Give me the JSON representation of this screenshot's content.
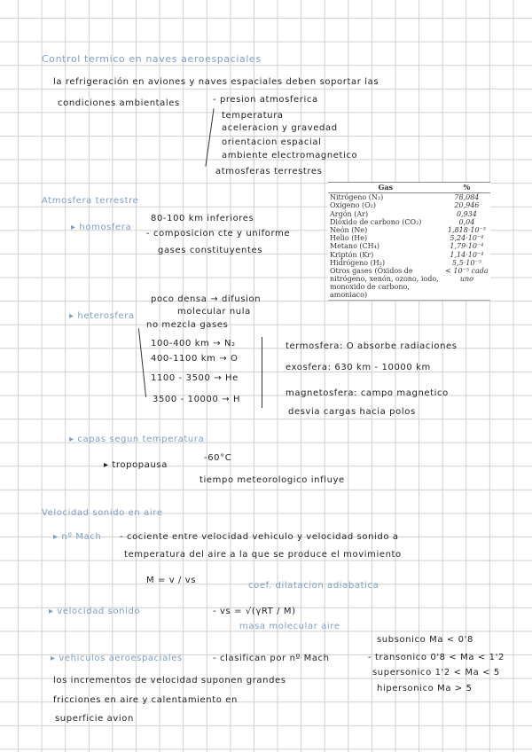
{
  "title": "Control termico en naves aeroespaciales",
  "intro": {
    "line1": "la refrigeración en aviones y naves espaciales deben soportar las",
    "line2": "condiciones ambientales",
    "conditions": [
      "- presion atmosferica",
      "temperatura",
      "aceleracion y gravedad",
      "orientacion espacial",
      "ambiente electromagnetico",
      "atmosferas terrestres"
    ]
  },
  "table": {
    "headers": [
      "Gas",
      "%"
    ],
    "rows": [
      [
        "Nitrógeno (N₂)",
        "78,084"
      ],
      [
        "Oxígeno (O₂)",
        "20,946"
      ],
      [
        "Argón (Ar)",
        "0,934"
      ],
      [
        "Dióxido de carbono (CO₂)",
        "0,04"
      ],
      [
        "Neón (Ne)",
        "1,818·10⁻³"
      ],
      [
        "Helio (He)",
        "5,24·10⁻⁴"
      ],
      [
        "Metano (CH₄)",
        "1,79·10⁻⁴"
      ],
      [
        "Kriptón (Kr)",
        "1,14·10⁻⁴"
      ],
      [
        "Hidrógeno (H₂)",
        "5,5·10⁻⁵"
      ],
      [
        "Otros gases (Óxidos de nitrógeno, xenón, ozono, iodo, monoxido de carbono, amoniaco)",
        "< 10⁻⁵ cada uno"
      ]
    ]
  },
  "atmosfera": {
    "heading": "Atmosfera terrestre",
    "homosfera": {
      "label": "▸ homosfera",
      "items": [
        "80-100 km inferiores",
        "- composicion cte y uniforme",
        "gases constituyentes"
      ]
    },
    "heterosfera": {
      "label": "▸ heterosfera",
      "items": [
        "poco densa → difusion",
        "molecular nula",
        "no mezcla gases"
      ],
      "layers": [
        "100-400 km → N₂",
        "400-1100 km → O",
        "1100 - 3500 → He",
        "3500 - 10000 → H"
      ]
    },
    "notes": [
      "termosfera: O absorbe radiaciones",
      "exosfera: 630 km - 10000 km",
      "magnetosfera: campo magnetico",
      "desvia cargas hacia polos"
    ],
    "capas": {
      "label": "▸ capas segun temperatura",
      "tropopausa": "▸ tropopausa",
      "items": [
        "-60°C",
        "tiempo meteorologico influye"
      ]
    }
  },
  "sonido": {
    "heading": "Velocidad sonido en aire",
    "mach_label": "▸ nº Mach",
    "mach_line1": "- cociente entre velocidad vehiculo y velocidad sonido a",
    "mach_line2": "temperatura del aire a la que se produce el movimiento",
    "formula_m": "M = v / vs",
    "vs_label": "▸ velocidad sonido",
    "vs_formula": "- vs = √(γRT / M)",
    "gamma_note": "coef. dilatacion adiabatica",
    "m_note": "masa molecular aire",
    "veh_label": "▸ vehiculos aeroespaciales",
    "veh_text": "- clasifican por nº Mach",
    "classes": [
      "subsonico  Ma < 0'8",
      "- transonico  0'8 < Ma < 1'2",
      "supersonico  1'2 < Ma < 5",
      "hipersonico  Ma > 5"
    ],
    "friction": [
      "los incrementos de velocidad suponen grandes",
      "fricciones en aire y calentamiento en",
      "superficie avion"
    ]
  }
}
